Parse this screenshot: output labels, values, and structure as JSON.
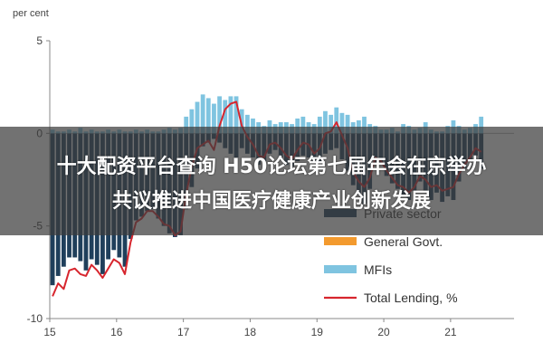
{
  "overlay": {
    "line1": "十大配资平台查询 H50论坛第七届年会在京举办",
    "line2": "共议推进中国医疗健康产业创新发展"
  },
  "colors": {
    "private_sector": "#1f3f5b",
    "general_govt": "#f39a2e",
    "mfis": "#7fc4e0",
    "total_lending": "#d7262e",
    "overlay_bg": "#3c3c3c"
  },
  "chart_data": {
    "type": "bar",
    "ylabel": "per cent",
    "ylim": [
      -10,
      5
    ],
    "yticks": [
      5,
      0,
      -5,
      -10
    ],
    "xticks": [
      "15",
      "16",
      "17",
      "18",
      "19",
      "20",
      "21"
    ],
    "grid": false,
    "legend_position": "bottom-right",
    "x_start": 2015.0,
    "x_step": 0.08333,
    "series": [
      {
        "name": "Private sector",
        "kind": "bar",
        "values": [
          -8.2,
          -7.7,
          -7.2,
          -6.7,
          -6.7,
          -6.9,
          -7.4,
          -6.8,
          -7.1,
          -7.6,
          -6.8,
          -6.3,
          -6.7,
          -7.2,
          -5.7,
          -4.7,
          -4.5,
          -4.2,
          -4.1,
          -4.6,
          -5.0,
          -5.4,
          -5.6,
          -5.5,
          -4.1,
          -2.9,
          -1.9,
          -0.7,
          -0.5,
          -0.3,
          -0.5,
          -0.8,
          -1.1,
          -1.3,
          -0.8,
          -1.1,
          -1.3,
          -1.7,
          -1.5,
          -1.1,
          -0.9,
          -1.3,
          -1.7,
          -1.8,
          -1.5,
          -1.2,
          -1.3,
          -1.5,
          -1.6,
          -1.1,
          -0.9,
          -0.8,
          -1.4,
          -2.0,
          -2.8,
          -3.3,
          -3.8,
          -3.0,
          -1.7,
          -1.6,
          -2.3,
          -2.7,
          -3.0,
          -3.4,
          -3.6,
          -3.1,
          -2.6,
          -3.2,
          -3.6,
          -3.2,
          -3.7,
          -3.4,
          -3.6,
          -2.6,
          -1.9,
          -1.5,
          -1.2,
          -1.9
        ]
      },
      {
        "name": "General Govt.",
        "kind": "bar",
        "values": [
          0,
          0,
          0,
          0,
          0,
          0,
          0,
          0,
          0,
          0,
          0,
          0,
          0,
          0,
          0,
          0,
          0,
          0,
          0,
          0,
          0,
          0,
          0,
          0,
          0,
          0,
          0,
          0,
          0,
          0,
          0,
          0,
          0,
          0,
          0,
          0,
          0,
          0,
          0,
          0,
          0,
          0,
          0,
          0,
          0,
          0,
          0,
          0,
          0,
          0,
          0,
          0,
          0,
          0,
          0,
          0,
          0,
          0,
          0,
          0,
          0,
          0,
          0,
          0,
          0,
          0,
          0,
          0,
          0,
          0,
          0,
          0,
          0,
          0,
          0,
          0,
          0,
          0
        ]
      },
      {
        "name": "MFIs",
        "kind": "bar",
        "values": [
          0.2,
          0.1,
          0.1,
          0.2,
          0.1,
          0.3,
          0.1,
          0.2,
          0.1,
          0.1,
          0.2,
          0.1,
          0.2,
          0.1,
          0.1,
          0.2,
          0.1,
          0.2,
          0.1,
          0.1,
          0.2,
          0.3,
          0.2,
          0.3,
          0.9,
          1.3,
          1.7,
          2.1,
          1.9,
          1.6,
          2.0,
          1.8,
          2.0,
          2.0,
          1.3,
          1.0,
          0.8,
          0.6,
          0.4,
          0.7,
          0.5,
          0.6,
          0.6,
          0.5,
          0.8,
          0.9,
          0.6,
          0.5,
          0.9,
          1.2,
          1.0,
          1.4,
          1.1,
          1.0,
          0.6,
          0.7,
          0.9,
          0.5,
          0.4,
          0.2,
          0.2,
          0.3,
          0.1,
          0.5,
          0.4,
          0.2,
          0.3,
          0.6,
          0.2,
          0.1,
          0.1,
          0.4,
          0.7,
          0.4,
          0.2,
          0.3,
          0.5,
          0.9
        ]
      },
      {
        "name": "Total Lending, %",
        "kind": "line",
        "values": [
          -8.8,
          -8.1,
          -8.4,
          -7.4,
          -7.3,
          -7.6,
          -7.7,
          -7.1,
          -7.4,
          -7.8,
          -7.3,
          -6.8,
          -7.0,
          -7.6,
          -5.9,
          -4.8,
          -4.6,
          -4.2,
          -4.2,
          -4.5,
          -4.9,
          -5.0,
          -5.5,
          -5.3,
          -3.3,
          -1.8,
          -0.8,
          -0.6,
          -0.4,
          -0.9,
          0.4,
          1.3,
          1.6,
          1.7,
          0.4,
          -0.2,
          -0.6,
          -1.2,
          -1.3,
          -0.6,
          -0.5,
          -0.8,
          -1.2,
          -1.4,
          -0.9,
          -0.5,
          -0.6,
          -1.1,
          -0.8,
          0.0,
          0.1,
          0.6,
          -0.1,
          -0.8,
          -2.1,
          -2.6,
          -2.9,
          -2.4,
          -1.3,
          -1.5,
          -2.0,
          -2.4,
          -2.8,
          -2.9,
          -3.2,
          -2.9,
          -2.3,
          -2.5,
          -2.9,
          -2.8,
          -3.1,
          -3.0,
          -2.9,
          -2.2,
          -1.7,
          -1.3,
          -0.8,
          -1.0
        ]
      }
    ]
  }
}
